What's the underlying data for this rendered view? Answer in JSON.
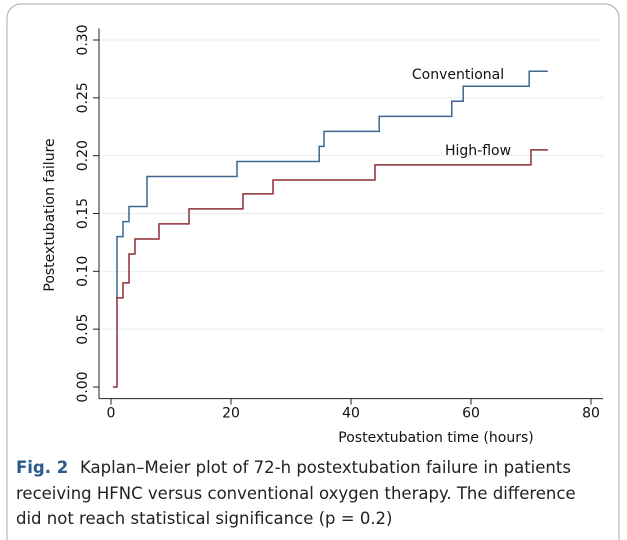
{
  "chart_data": {
    "type": "step",
    "xlabel": "Postextubation time (hours)",
    "ylabel": "Postextubation failure",
    "xlim": [
      -2,
      82
    ],
    "xticks": [
      0,
      20,
      40,
      60,
      80
    ],
    "ylim": [
      -0.01,
      0.31
    ],
    "yticks": [
      {
        "value": 0,
        "label": "0.00"
      },
      {
        "value": 0.05,
        "label": "0.05"
      },
      {
        "value": 0.1,
        "label": "0.10"
      },
      {
        "value": 0.15,
        "label": "0.15"
      },
      {
        "value": 0.2,
        "label": "0.20"
      },
      {
        "value": 0.25,
        "label": "0.25"
      },
      {
        "value": 0.3,
        "label": "0.30"
      }
    ],
    "grid": true,
    "series": [
      {
        "name": "Conventional",
        "color": "#3d6690",
        "x": [
          1,
          1,
          2,
          3,
          6,
          21,
          34.7,
          35.5,
          44.7,
          56.8,
          58.7,
          69.7,
          72.8
        ],
        "values": [
          0.077,
          0.13,
          0.143,
          0.156,
          0.182,
          0.195,
          0.208,
          0.221,
          0.234,
          0.247,
          0.26,
          0.273,
          0.273
        ]
      },
      {
        "name": "High-flow",
        "color": "#8e2f35",
        "x": [
          0.3,
          1,
          2,
          3,
          4,
          8,
          13,
          22,
          27,
          44,
          70,
          72.8
        ],
        "values": [
          0,
          0.077,
          0.09,
          0.115,
          0.128,
          0.141,
          0.154,
          0.167,
          0.179,
          0.192,
          0.205,
          0.205
        ]
      }
    ],
    "caption_label": "Fig. 2",
    "caption_lines": [
      "Kaplan–Meier plot of 72-h postextubation failure in patients",
      "receiving HFNC versus conventional oxygen therapy. The difference",
      "did not reach statistical significance (p = 0.2)"
    ]
  }
}
